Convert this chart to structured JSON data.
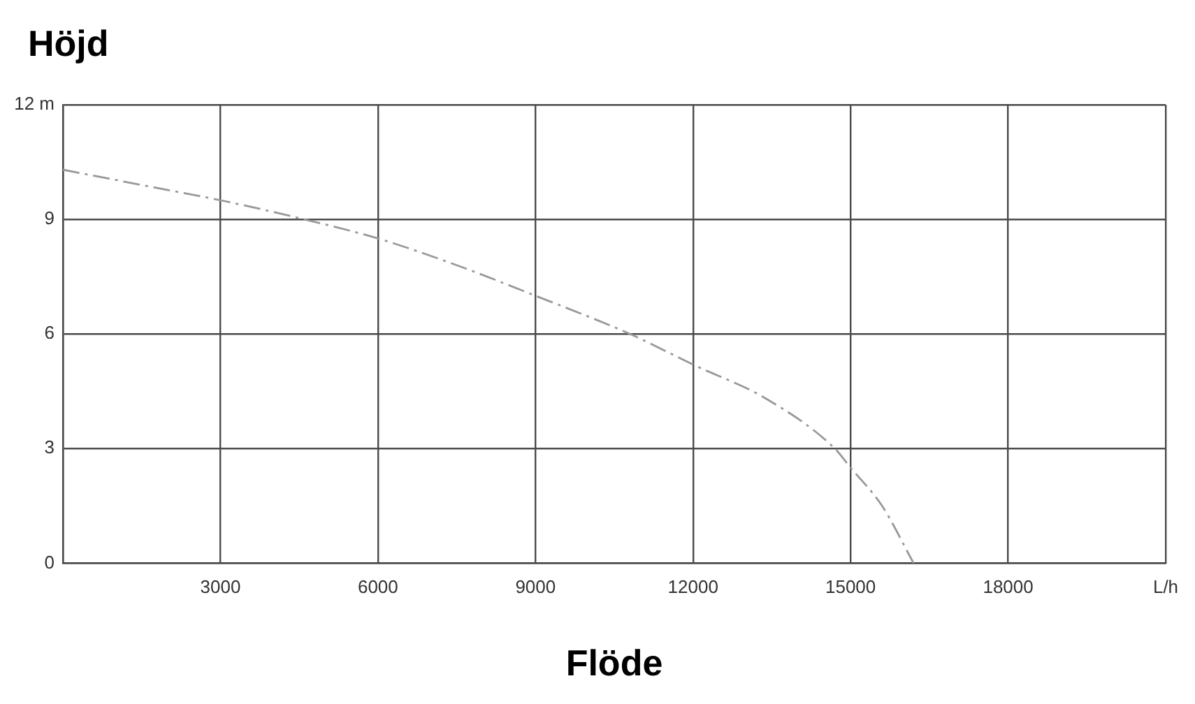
{
  "chart_data": {
    "type": "line",
    "ylabel": "Höjd",
    "xlabel": "Flöde",
    "x": [
      0,
      1500,
      3000,
      4600,
      6000,
      7500,
      9000,
      10800,
      12000,
      13400,
      14700,
      15000,
      15600,
      16200
    ],
    "values": [
      10.3,
      9.9,
      9.5,
      9.0,
      8.5,
      7.8,
      7.0,
      6.0,
      5.2,
      4.3,
      3.0,
      2.5,
      1.5,
      0
    ],
    "color": "#999999",
    "line_style": "dashed",
    "marker": "none",
    "xlim": [
      0,
      21000
    ],
    "xticks": [
      {
        "value": 0,
        "label": null
      },
      3000,
      6000,
      9000,
      12000,
      15000,
      18000,
      {
        "value": 21000,
        "label": "L/h"
      }
    ],
    "ylim": [
      0,
      12
    ],
    "yticks": [
      0,
      3,
      6,
      9,
      {
        "value": 12,
        "label": "12 m"
      }
    ],
    "grid": true
  }
}
